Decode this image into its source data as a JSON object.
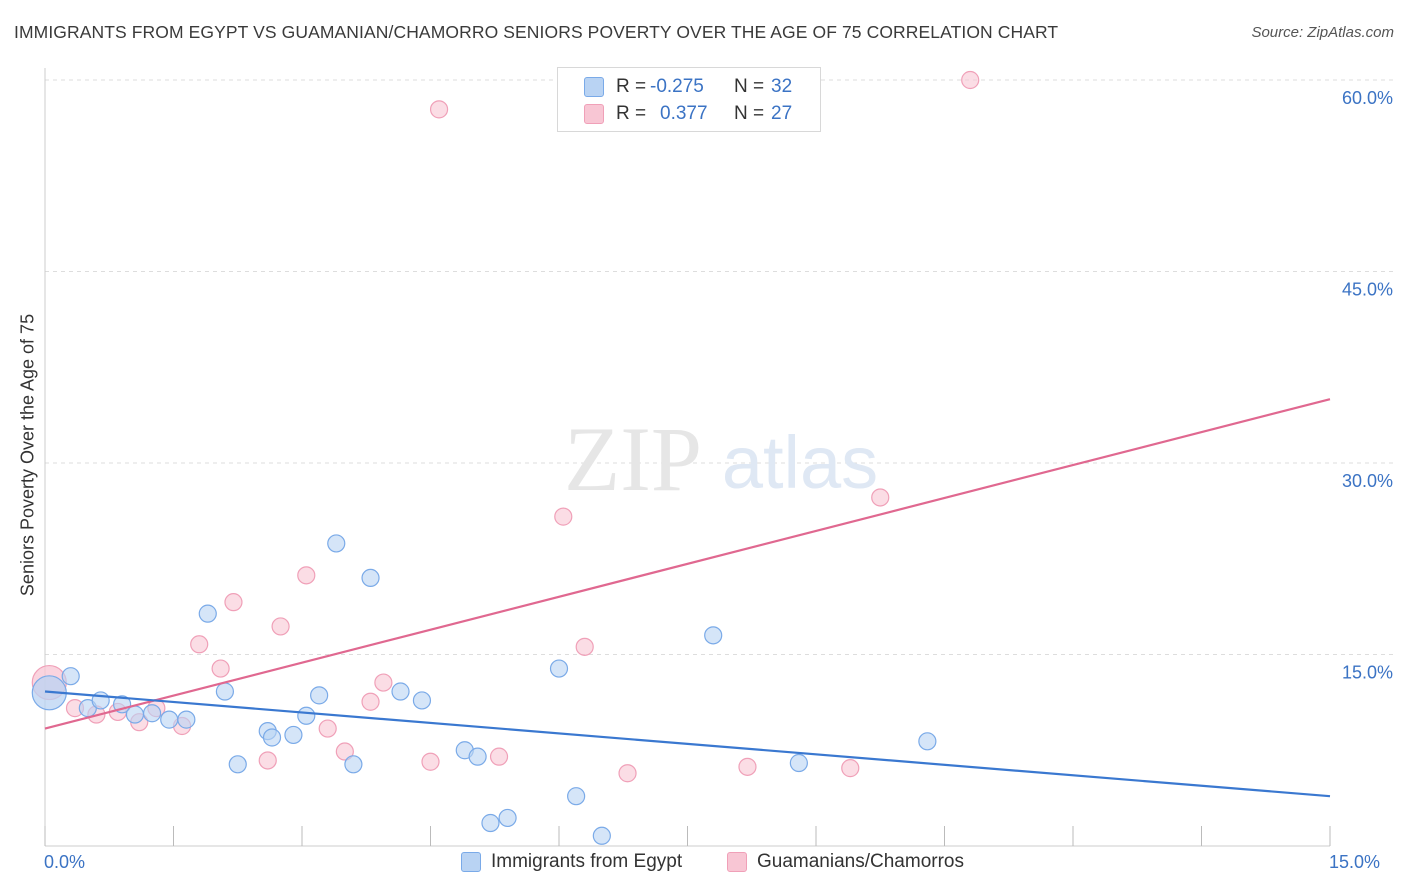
{
  "title": "IMMIGRANTS FROM EGYPT VS GUAMANIAN/CHAMORRO SENIORS POVERTY OVER THE AGE OF 75 CORRELATION CHART",
  "source": "Source: ZipAtlas.com",
  "watermark": {
    "zip": "ZIP",
    "atlas": "atlas"
  },
  "correlation_legend": [
    {
      "r_label": "R =",
      "r_value": "-0.275",
      "n_label": "N =",
      "n_value": "32",
      "color": "#7aaae8"
    },
    {
      "r_label": "R =",
      "r_value": "0.377",
      "n_label": "N =",
      "n_value": "27",
      "color": "#f2a0b8"
    }
  ],
  "x_tick_labels": {
    "left": "0.0%",
    "right": "15.0%"
  },
  "colors": {
    "blue_fill": "#b9d3f3",
    "blue_stroke": "#7aaae8",
    "blue_line": "#3a78d0",
    "pink_fill": "#f8c6d4",
    "pink_stroke": "#f0a0b8",
    "pink_line": "#e06890",
    "tick_label": "#3b73c4",
    "grid": "#dddddd"
  },
  "chart_data": {
    "type": "scatter",
    "title": "IMMIGRANTS FROM EGYPT VS GUAMANIAN/CHAMORRO SENIORS POVERTY OVER THE AGE OF 75 CORRELATION CHART",
    "xlabel": "",
    "ylabel": "Seniors Poverty Over the Age of 75",
    "xlim": [
      0,
      15
    ],
    "ylim": [
      0,
      60
    ],
    "y_ticks": [
      15,
      30,
      45,
      60
    ],
    "y_tick_labels": [
      "15.0%",
      "30.0%",
      "45.0%",
      "60.0%"
    ],
    "grid": true,
    "legend_position": "bottom",
    "series": [
      {
        "name": "Immigrants from Egypt",
        "color": "#7aaae8",
        "points": [
          [
            0.05,
            12.0,
            "large"
          ],
          [
            0.3,
            13.3
          ],
          [
            0.5,
            10.8
          ],
          [
            0.65,
            11.4
          ],
          [
            0.9,
            11.1
          ],
          [
            1.05,
            10.3
          ],
          [
            1.25,
            10.4
          ],
          [
            1.45,
            9.9
          ],
          [
            1.65,
            9.9
          ],
          [
            1.9,
            18.2
          ],
          [
            2.1,
            12.1
          ],
          [
            2.25,
            6.4
          ],
          [
            2.6,
            9.0
          ],
          [
            2.65,
            8.5
          ],
          [
            2.9,
            8.7
          ],
          [
            3.05,
            10.2
          ],
          [
            3.2,
            11.8
          ],
          [
            3.4,
            23.7
          ],
          [
            3.6,
            6.4
          ],
          [
            3.8,
            21.0
          ],
          [
            4.15,
            12.1
          ],
          [
            4.4,
            11.4
          ],
          [
            4.9,
            7.5
          ],
          [
            5.05,
            7.0
          ],
          [
            5.2,
            1.8
          ],
          [
            5.4,
            2.2
          ],
          [
            6.0,
            13.9
          ],
          [
            6.2,
            3.9
          ],
          [
            6.5,
            0.8
          ],
          [
            7.8,
            16.5
          ],
          [
            8.8,
            6.5
          ],
          [
            10.3,
            8.2
          ]
        ],
        "trend": {
          "x": [
            0,
            15
          ],
          "y": [
            12.1,
            3.9
          ]
        }
      },
      {
        "name": "Guamanians/Chamorros",
        "color": "#f0a0b8",
        "points": [
          [
            0.05,
            12.8,
            "large"
          ],
          [
            0.35,
            10.8
          ],
          [
            0.6,
            10.3
          ],
          [
            0.85,
            10.5
          ],
          [
            1.1,
            9.7
          ],
          [
            1.3,
            10.8
          ],
          [
            1.6,
            9.4
          ],
          [
            1.8,
            15.8
          ],
          [
            2.05,
            13.9
          ],
          [
            2.2,
            19.1
          ],
          [
            2.6,
            6.7
          ],
          [
            2.75,
            17.2
          ],
          [
            3.05,
            21.2
          ],
          [
            3.3,
            9.2
          ],
          [
            3.5,
            7.4
          ],
          [
            3.8,
            11.3
          ],
          [
            3.95,
            12.8
          ],
          [
            4.5,
            6.6
          ],
          [
            4.6,
            57.7
          ],
          [
            5.3,
            7.0
          ],
          [
            6.05,
            25.8
          ],
          [
            6.3,
            15.6
          ],
          [
            6.8,
            5.7
          ],
          [
            8.2,
            6.2
          ],
          [
            9.4,
            6.1
          ],
          [
            9.75,
            27.3
          ],
          [
            10.8,
            60.0
          ]
        ],
        "trend": {
          "x": [
            0,
            15
          ],
          "y": [
            9.2,
            35.0
          ]
        }
      }
    ]
  },
  "bottom_legend": [
    {
      "label": "Immigrants from Egypt",
      "color": "#7aaae8"
    },
    {
      "label": "Guamanians/Chamorros",
      "color": "#f0a0b8"
    }
  ]
}
